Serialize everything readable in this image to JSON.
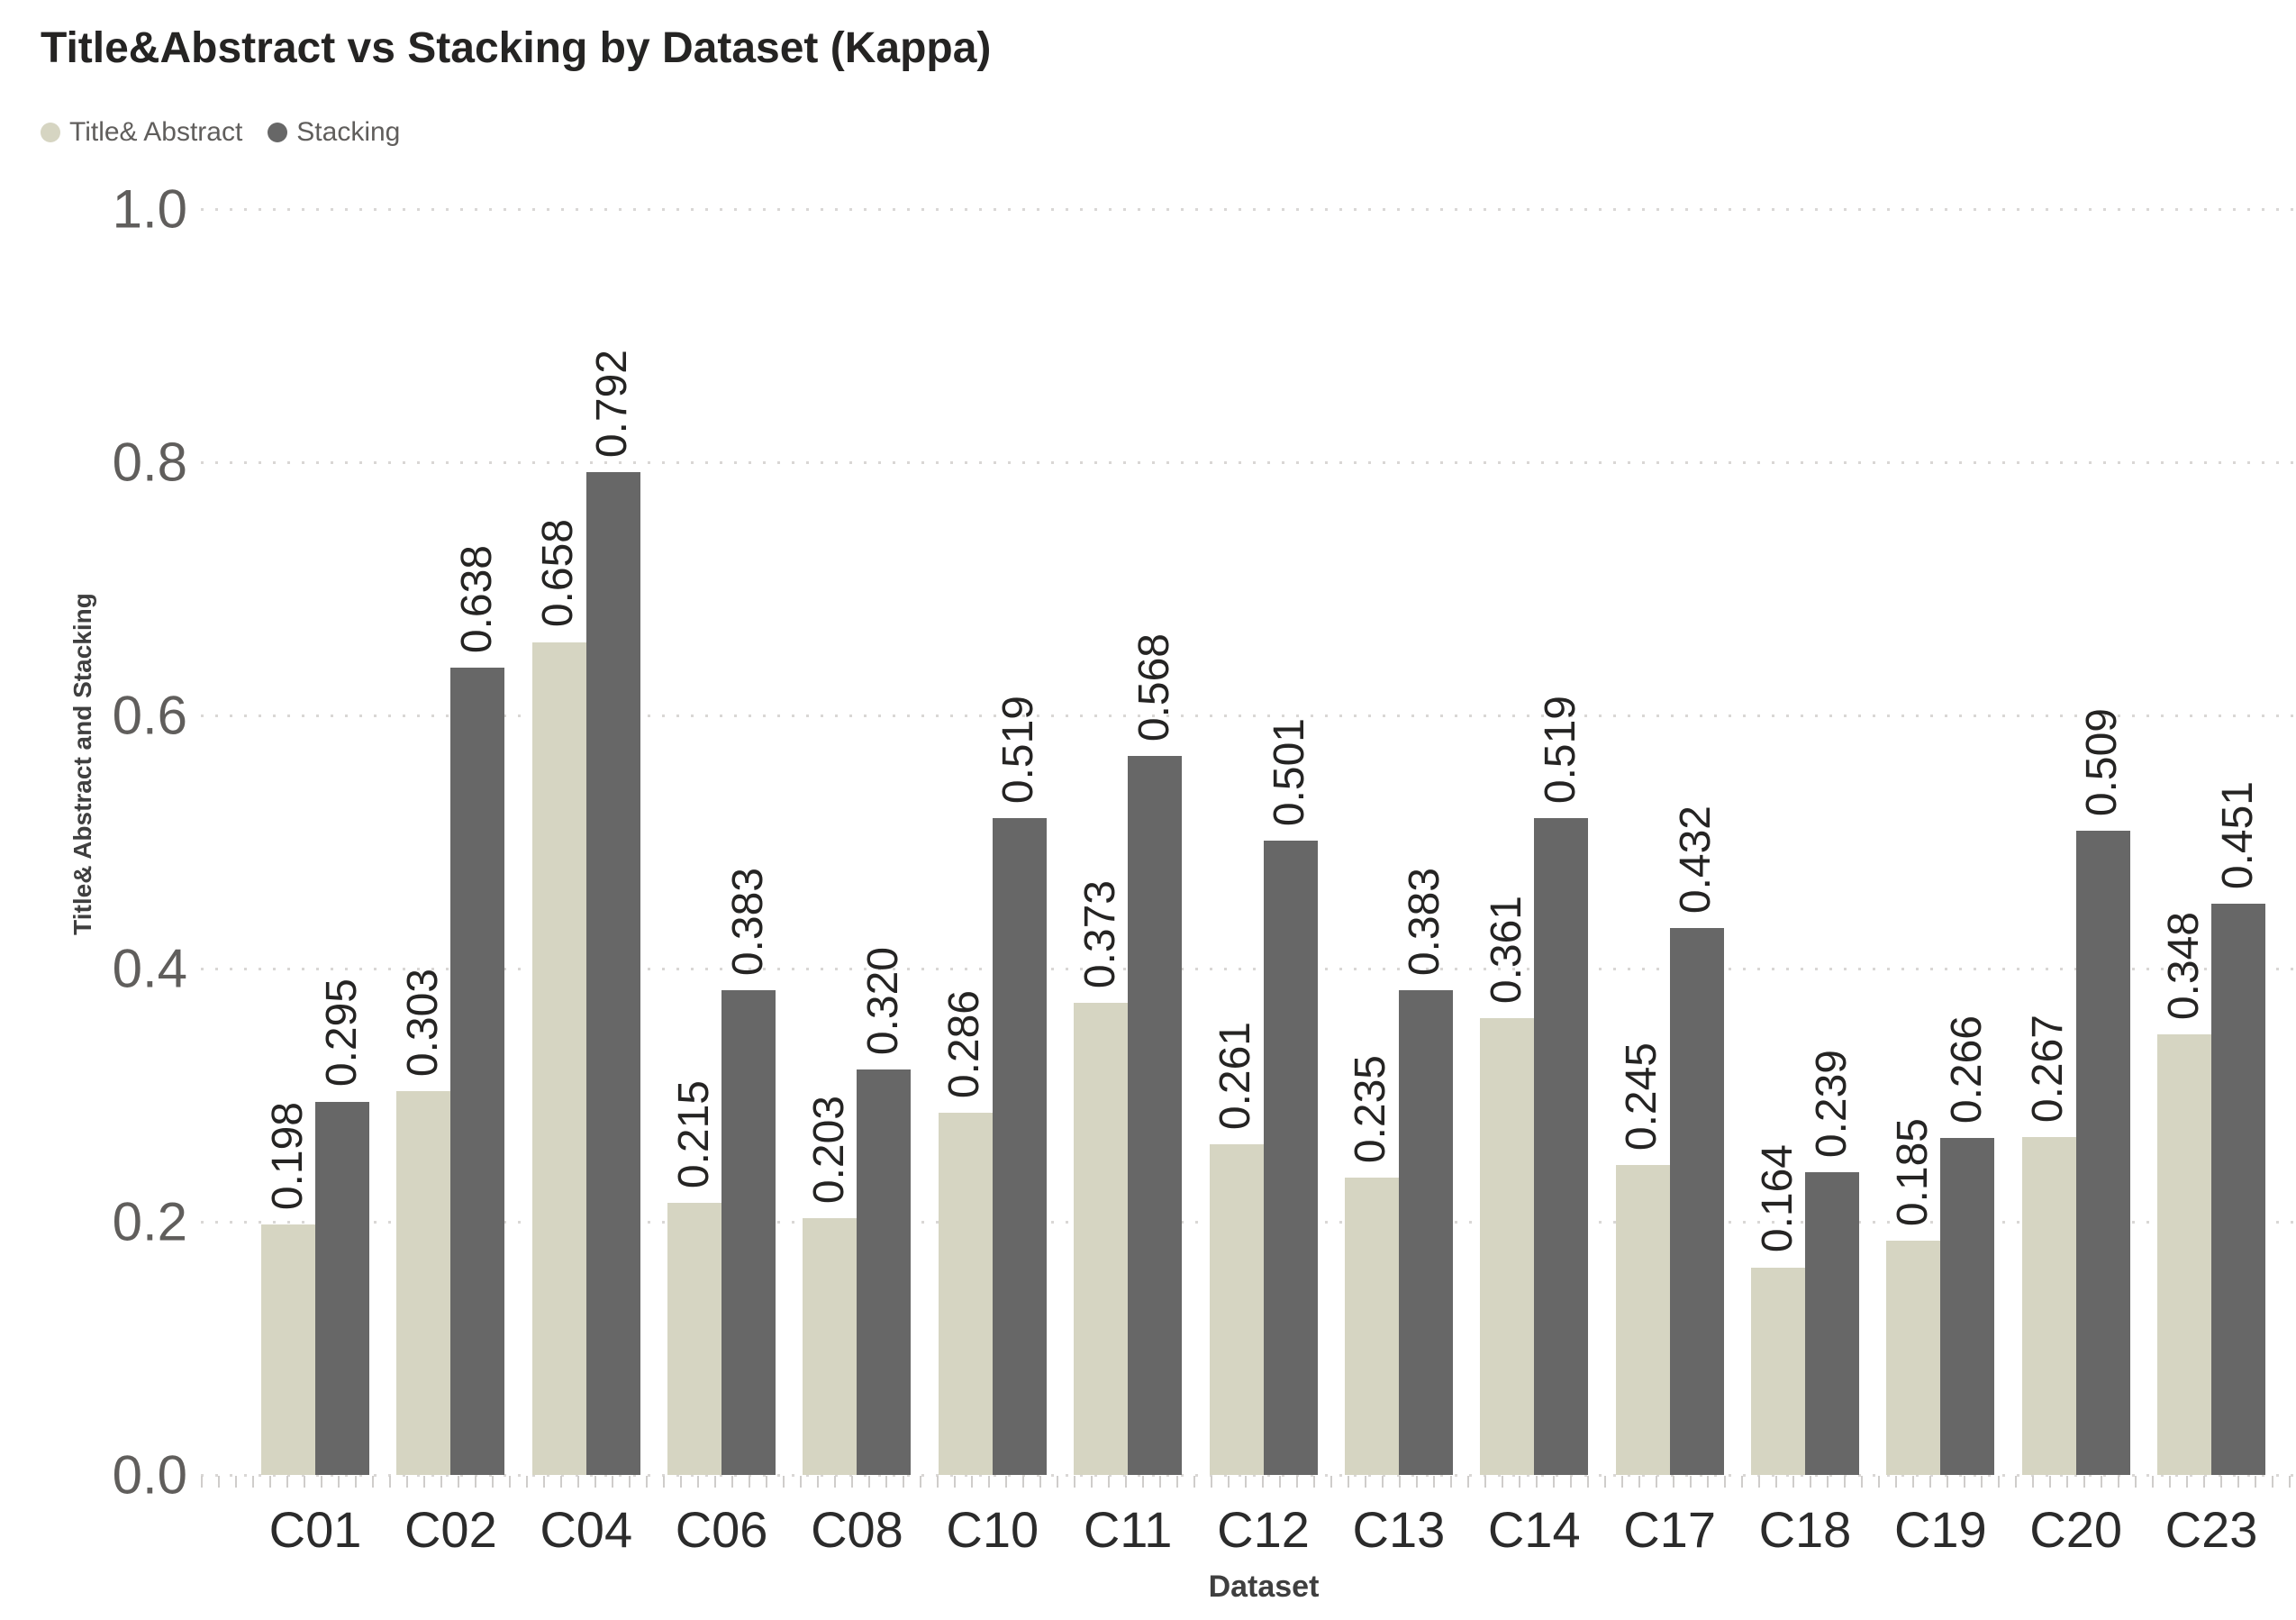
{
  "title": "Title&Abstract vs Stacking by Dataset (Kappa)",
  "legend": {
    "items": [
      {
        "label": "Title& Abstract",
        "color": "#d6d5c2"
      },
      {
        "label": "Stacking",
        "color": "#676767"
      }
    ]
  },
  "y_axis": {
    "title": "Title& Abstract and Stacking",
    "ticks": [
      "1.0",
      "0.8",
      "0.6",
      "0.4",
      "0.2",
      "0.0"
    ]
  },
  "x_axis": {
    "title": "Dataset"
  },
  "chart_data": {
    "type": "bar",
    "title": "Title&Abstract vs Stacking by Dataset (Kappa)",
    "xlabel": "Dataset",
    "ylabel": "Title& Abstract and Stacking",
    "ylim": [
      0,
      1.0
    ],
    "grid": "dotted horizontal lines at 0.0,0.2,0.4,0.6,0.8,1.0",
    "legend_position": "top-left",
    "value_label_format": "3 decimals, rotated 90deg above bars",
    "categories": [
      "C01",
      "C02",
      "C04",
      "C06",
      "C08",
      "C10",
      "C11",
      "C12",
      "C13",
      "C14",
      "C17",
      "C18",
      "C19",
      "C20",
      "C23"
    ],
    "series": [
      {
        "name": "Title& Abstract",
        "color": "#d6d5c2",
        "values": [
          0.198,
          0.303,
          0.658,
          0.215,
          0.203,
          0.286,
          0.373,
          0.261,
          0.235,
          0.361,
          0.245,
          0.164,
          0.185,
          0.267,
          0.348
        ]
      },
      {
        "name": "Stacking",
        "color": "#676767",
        "values": [
          0.295,
          0.638,
          0.792,
          0.383,
          0.32,
          0.519,
          0.568,
          0.501,
          0.383,
          0.519,
          0.432,
          0.239,
          0.266,
          0.509,
          0.451
        ]
      }
    ]
  }
}
